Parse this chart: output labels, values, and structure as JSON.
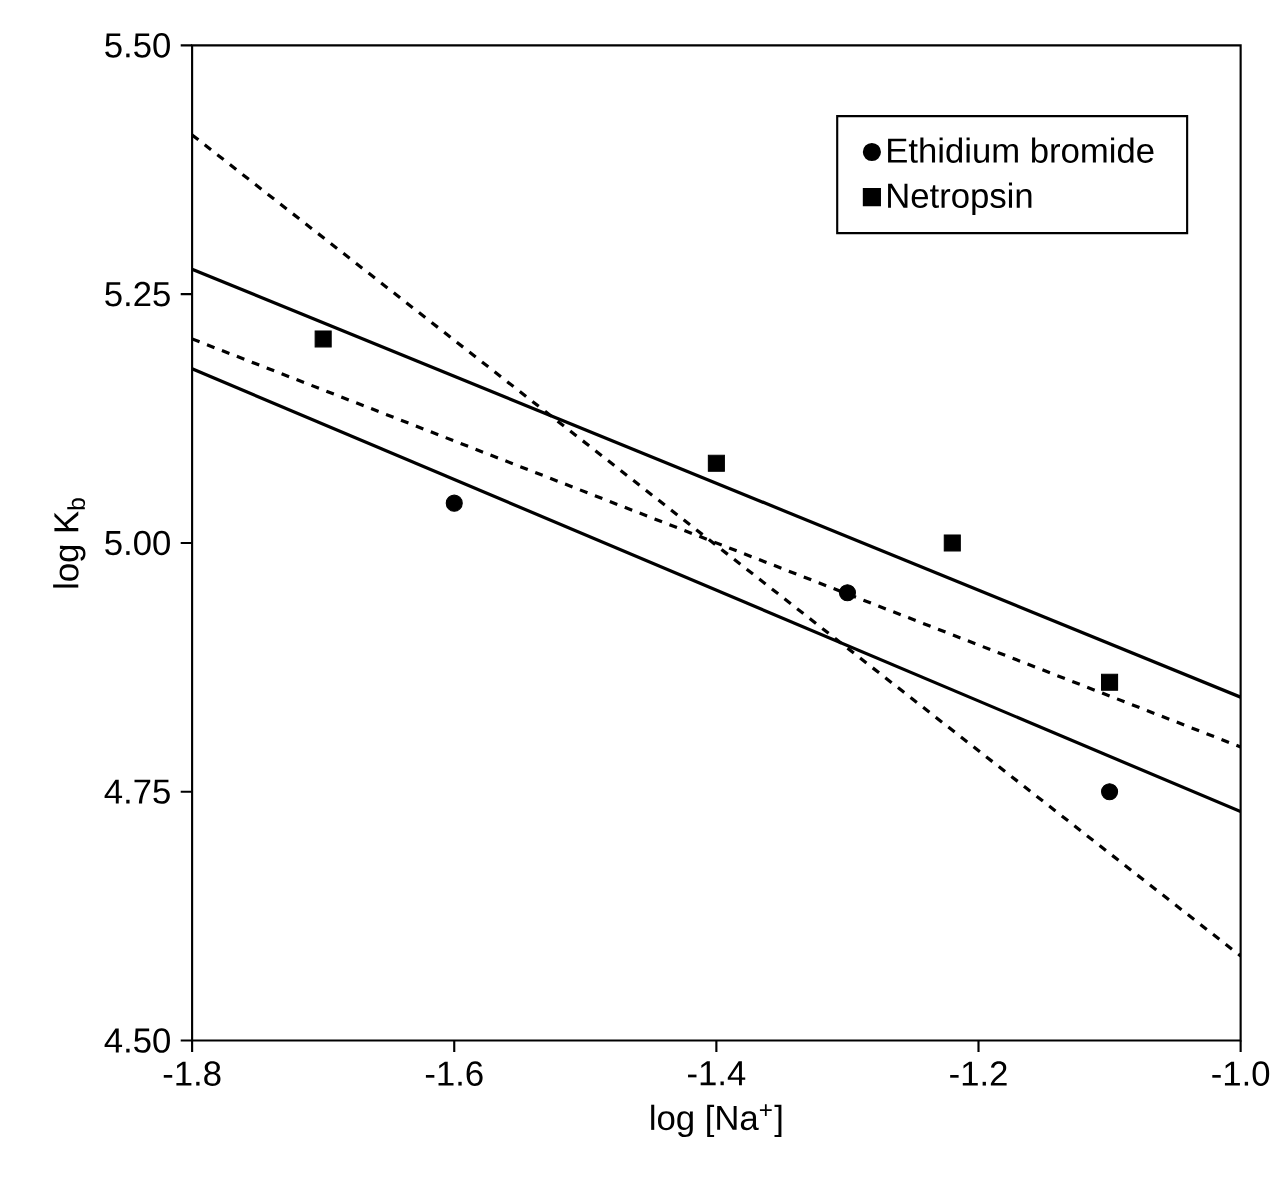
{
  "chart_data": {
    "type": "scatter",
    "xlabel": "log [Na$^{+}$]",
    "ylabel": "log K$_{b}$",
    "xlim": [
      -1.8,
      -1.0
    ],
    "ylim": [
      4.5,
      5.5
    ],
    "xticks": [
      -1.8,
      -1.6,
      -1.4,
      -1.2,
      {
        "value": -1.0,
        "label": "-1.0"
      }
    ],
    "yticks": [
      {
        "value": 4.5,
        "label": "4.50"
      },
      {
        "value": 4.75,
        "label": "4.75"
      },
      {
        "value": 5.0,
        "label": "5.00"
      },
      {
        "value": 5.25,
        "label": "5.25"
      },
      {
        "value": 5.5,
        "label": "5.50"
      }
    ],
    "legend": "top right",
    "grid": false,
    "series": [
      {
        "name": "Ethidium bromide",
        "marker": "circle",
        "color": "#000000",
        "x": [
          -1.6,
          -1.3,
          -1.1
        ],
        "values": [
          5.04,
          4.95,
          4.75
        ]
      },
      {
        "name": "Netropsin",
        "marker": "square",
        "color": "#000000",
        "x": [
          -1.7,
          -1.4,
          -1.22,
          -1.1
        ],
        "values": [
          5.205,
          5.08,
          5.0,
          4.86
        ]
      },
      {
        "type": "line",
        "line_style": "solid",
        "marker": "none",
        "color": "#000000",
        "x": [
          -1.8,
          -1.0
        ],
        "values": [
          5.275,
          4.845
        ]
      },
      {
        "type": "line",
        "line_style": "solid",
        "marker": "none",
        "color": "#000000",
        "x": [
          -1.8,
          -1.0
        ],
        "values": [
          5.175,
          4.73
        ]
      },
      {
        "type": "line",
        "line_style": "dashed",
        "marker": "none",
        "color": "#000000",
        "x": [
          -1.8,
          -1.0
        ],
        "values": [
          5.41,
          4.585
        ]
      },
      {
        "type": "line",
        "line_style": "dashed",
        "marker": "none",
        "color": "#000000",
        "x": [
          -1.8,
          -1.0
        ],
        "values": [
          5.205,
          4.795
        ]
      }
    ]
  }
}
